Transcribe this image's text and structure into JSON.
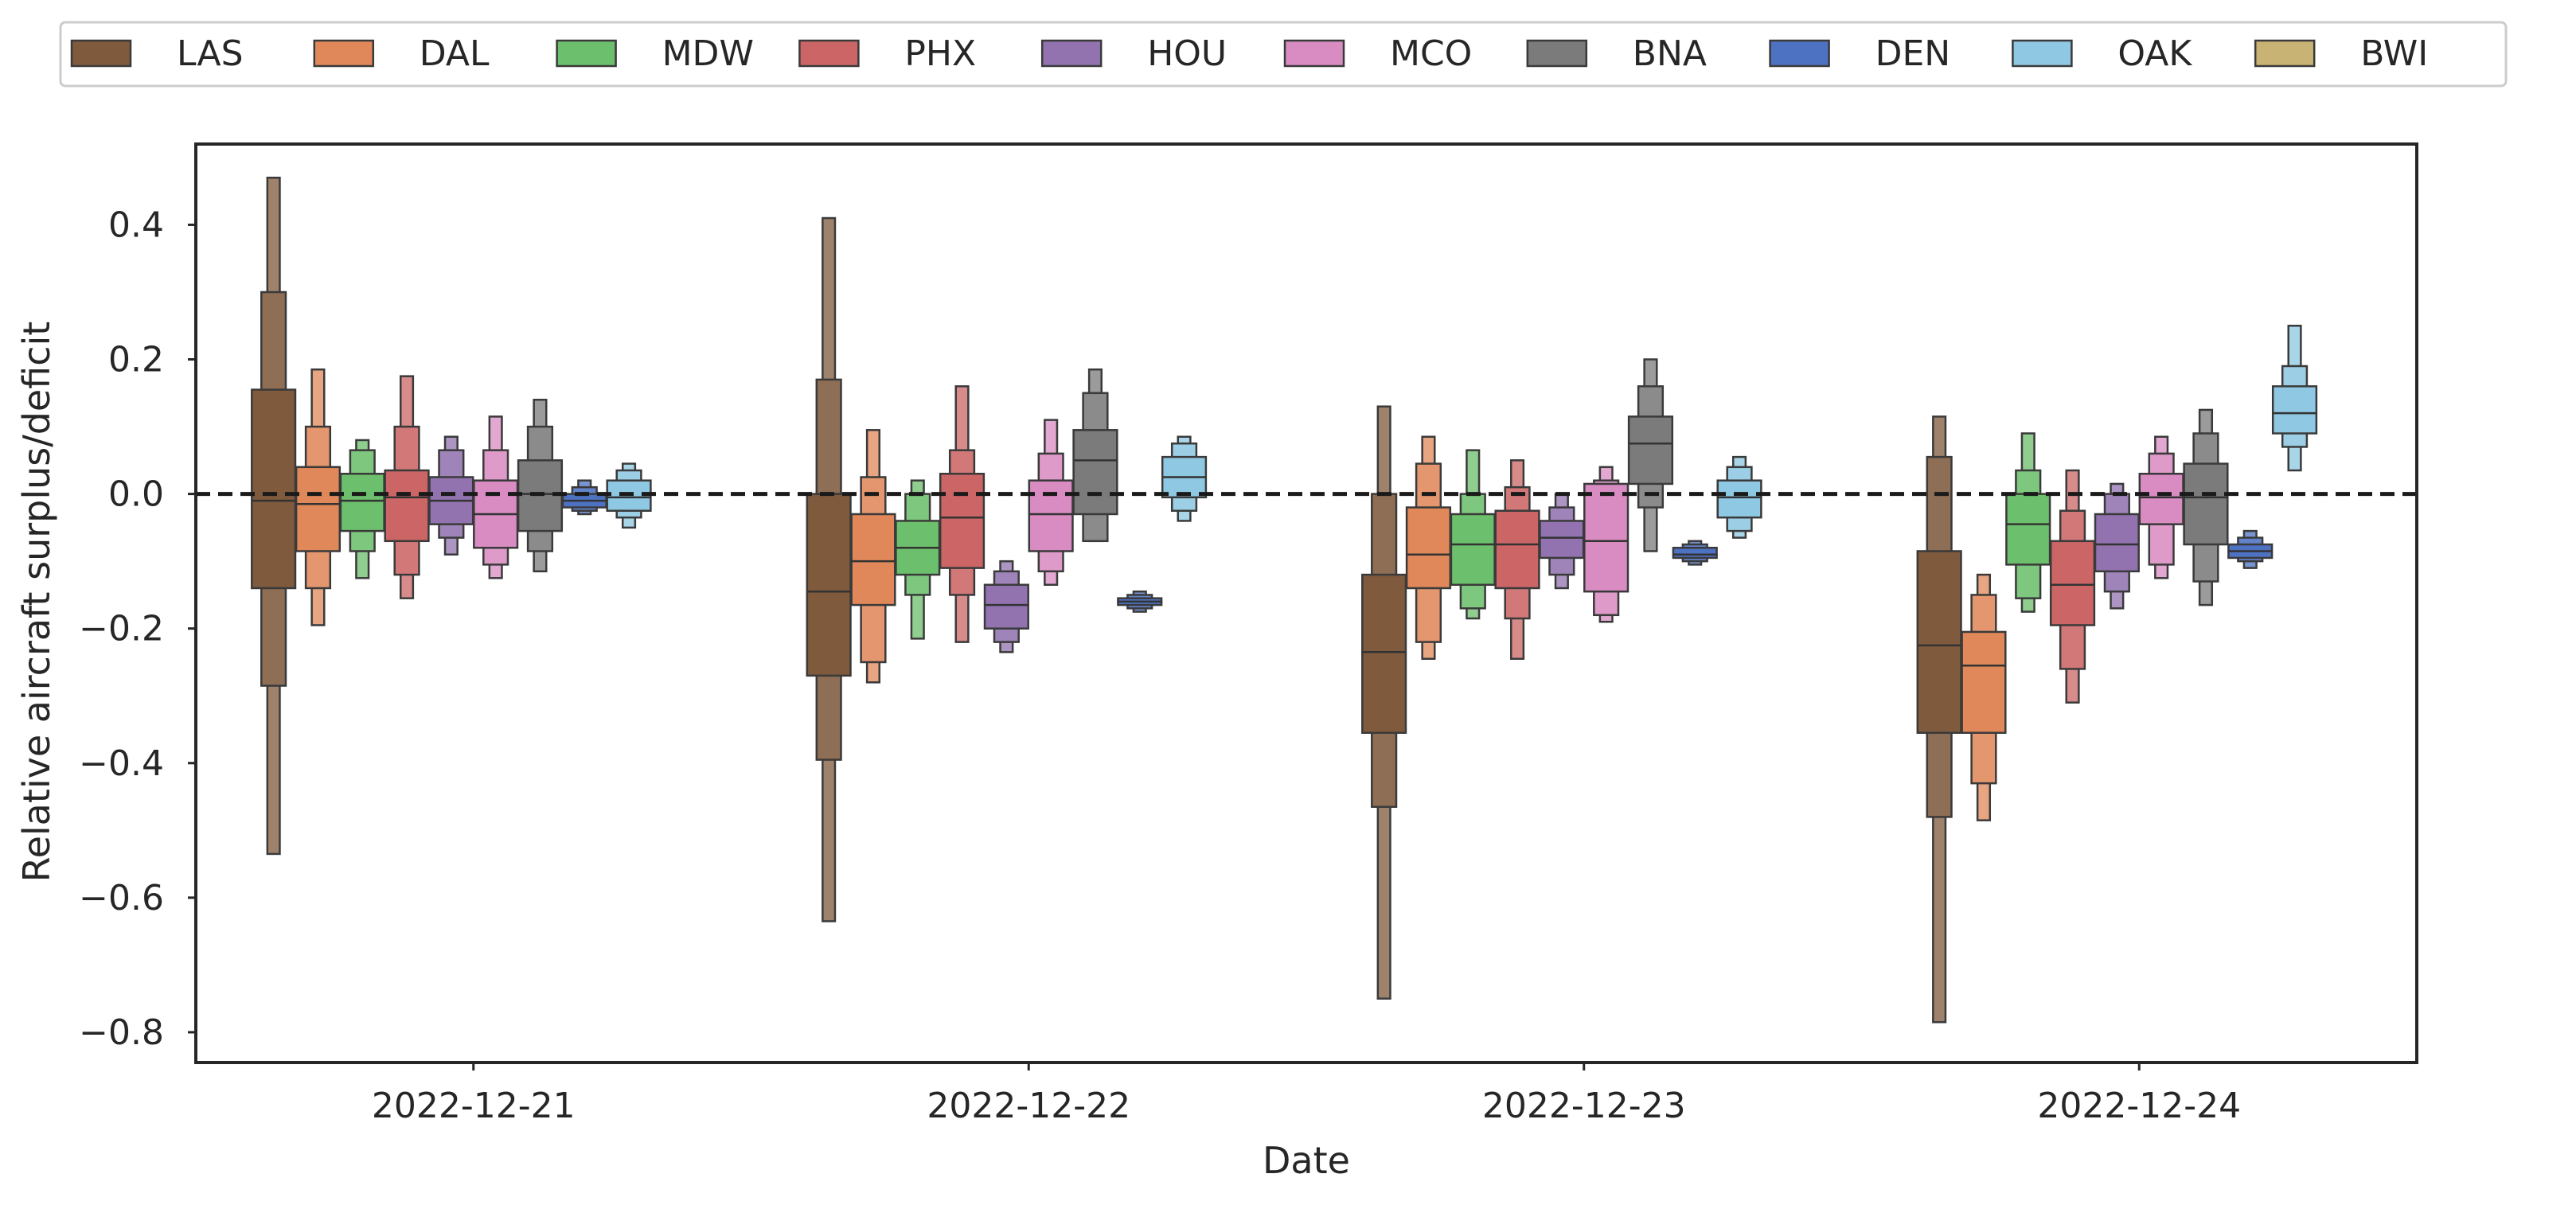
{
  "chart_data": {
    "type": "boxen",
    "xlabel": "Date",
    "ylabel": "Relative aircraft surplus/deficit",
    "ylim": [
      -0.845,
      0.52
    ],
    "yticks": [
      0.4,
      0.2,
      0.0,
      -0.2,
      -0.4,
      -0.6,
      -0.8
    ],
    "ytick_labels": [
      "0.4",
      "0.2",
      "0.0",
      "−0.2",
      "−0.4",
      "−0.6",
      "−0.8"
    ],
    "categories": [
      "2022-12-21",
      "2022-12-22",
      "2022-12-23",
      "2022-12-24"
    ],
    "reference_line": 0.0,
    "legend_position": "top, outside plot, single row",
    "grid": false,
    "series": [
      {
        "name": "LAS",
        "color": "#7f5a3d",
        "data": [
          {
            "median": -0.01,
            "levels": [
              [
                -0.14,
                0.155
              ],
              [
                -0.285,
                0.3
              ],
              [
                -0.535,
                0.47
              ]
            ]
          },
          {
            "median": -0.145,
            "levels": [
              [
                -0.27,
                0.0
              ],
              [
                -0.395,
                0.17
              ],
              [
                -0.635,
                0.41
              ]
            ]
          },
          {
            "median": -0.235,
            "levels": [
              [
                -0.355,
                -0.12
              ],
              [
                -0.465,
                0.0
              ],
              [
                -0.75,
                0.13
              ]
            ]
          },
          {
            "median": -0.225,
            "levels": [
              [
                -0.355,
                -0.085
              ],
              [
                -0.48,
                0.055
              ],
              [
                -0.785,
                0.115
              ]
            ]
          }
        ]
      },
      {
        "name": "DAL",
        "color": "#e0885a",
        "data": [
          {
            "median": -0.015,
            "levels": [
              [
                -0.085,
                0.04
              ],
              [
                -0.14,
                0.1
              ],
              [
                -0.195,
                0.185
              ]
            ]
          },
          {
            "median": -0.1,
            "levels": [
              [
                -0.165,
                -0.03
              ],
              [
                -0.25,
                0.025
              ],
              [
                -0.28,
                0.095
              ]
            ]
          },
          {
            "median": -0.09,
            "levels": [
              [
                -0.14,
                -0.02
              ],
              [
                -0.22,
                0.045
              ],
              [
                -0.245,
                0.085
              ]
            ]
          },
          {
            "median": -0.255,
            "levels": [
              [
                -0.355,
                -0.205
              ],
              [
                -0.43,
                -0.15
              ],
              [
                -0.485,
                -0.12
              ]
            ]
          }
        ]
      },
      {
        "name": "MDW",
        "color": "#6cbf6c",
        "data": [
          {
            "median": -0.01,
            "levels": [
              [
                -0.055,
                0.03
              ],
              [
                -0.085,
                0.065
              ],
              [
                -0.125,
                0.08
              ]
            ]
          },
          {
            "median": -0.08,
            "levels": [
              [
                -0.12,
                -0.04
              ],
              [
                -0.15,
                0.0
              ],
              [
                -0.215,
                0.02
              ]
            ]
          },
          {
            "median": -0.075,
            "levels": [
              [
                -0.135,
                -0.03
              ],
              [
                -0.17,
                0.0
              ],
              [
                -0.185,
                0.065
              ]
            ]
          },
          {
            "median": -0.045,
            "levels": [
              [
                -0.105,
                0.0
              ],
              [
                -0.155,
                0.035
              ],
              [
                -0.175,
                0.09
              ]
            ]
          }
        ]
      },
      {
        "name": "PHX",
        "color": "#cc6666",
        "data": [
          {
            "median": -0.005,
            "levels": [
              [
                -0.07,
                0.035
              ],
              [
                -0.12,
                0.1
              ],
              [
                -0.155,
                0.175
              ]
            ]
          },
          {
            "median": -0.035,
            "levels": [
              [
                -0.11,
                0.03
              ],
              [
                -0.15,
                0.065
              ],
              [
                -0.22,
                0.16
              ]
            ]
          },
          {
            "median": -0.075,
            "levels": [
              [
                -0.14,
                -0.025
              ],
              [
                -0.185,
                0.01
              ],
              [
                -0.245,
                0.05
              ]
            ]
          },
          {
            "median": -0.135,
            "levels": [
              [
                -0.195,
                -0.07
              ],
              [
                -0.26,
                -0.025
              ],
              [
                -0.31,
                0.035
              ]
            ]
          }
        ]
      },
      {
        "name": "HOU",
        "color": "#9273b0",
        "data": [
          {
            "median": -0.01,
            "levels": [
              [
                -0.045,
                0.025
              ],
              [
                -0.065,
                0.065
              ],
              [
                -0.09,
                0.085
              ]
            ]
          },
          {
            "median": -0.165,
            "levels": [
              [
                -0.2,
                -0.135
              ],
              [
                -0.22,
                -0.115
              ],
              [
                -0.235,
                -0.1
              ]
            ]
          },
          {
            "median": -0.065,
            "levels": [
              [
                -0.095,
                -0.04
              ],
              [
                -0.12,
                -0.02
              ],
              [
                -0.14,
                0.0
              ]
            ]
          },
          {
            "median": -0.075,
            "levels": [
              [
                -0.115,
                -0.03
              ],
              [
                -0.145,
                0.0
              ],
              [
                -0.17,
                0.015
              ]
            ]
          }
        ]
      },
      {
        "name": "MCO",
        "color": "#d98cc2",
        "data": [
          {
            "median": -0.03,
            "levels": [
              [
                -0.08,
                0.02
              ],
              [
                -0.105,
                0.065
              ],
              [
                -0.125,
                0.115
              ]
            ]
          },
          {
            "median": -0.03,
            "levels": [
              [
                -0.085,
                0.02
              ],
              [
                -0.115,
                0.06
              ],
              [
                -0.135,
                0.11
              ]
            ]
          },
          {
            "median": -0.07,
            "levels": [
              [
                -0.145,
                0.015
              ],
              [
                -0.18,
                0.02
              ],
              [
                -0.19,
                0.04
              ]
            ]
          },
          {
            "median": -0.005,
            "levels": [
              [
                -0.045,
                0.03
              ],
              [
                -0.105,
                0.06
              ],
              [
                -0.125,
                0.085
              ]
            ]
          }
        ]
      },
      {
        "name": "BNA",
        "color": "#7b7b7b",
        "data": [
          {
            "median": 0.0,
            "levels": [
              [
                -0.055,
                0.05
              ],
              [
                -0.085,
                0.1
              ],
              [
                -0.115,
                0.14
              ]
            ]
          },
          {
            "median": 0.05,
            "levels": [
              [
                -0.03,
                0.095
              ],
              [
                -0.07,
                0.15
              ],
              [
                -0.07,
                0.185
              ]
            ]
          },
          {
            "median": 0.075,
            "levels": [
              [
                0.015,
                0.115
              ],
              [
                -0.02,
                0.16
              ],
              [
                -0.085,
                0.2
              ]
            ]
          },
          {
            "median": -0.005,
            "levels": [
              [
                -0.075,
                0.045
              ],
              [
                -0.13,
                0.09
              ],
              [
                -0.165,
                0.125
              ]
            ]
          }
        ]
      },
      {
        "name": "DEN",
        "color": "#4e72c2",
        "data": [
          {
            "median": -0.01,
            "levels": [
              [
                -0.02,
                0.0
              ],
              [
                -0.025,
                0.01
              ],
              [
                -0.03,
                0.02
              ]
            ]
          },
          {
            "median": -0.16,
            "levels": [
              [
                -0.165,
                -0.155
              ],
              [
                -0.17,
                -0.15
              ],
              [
                -0.175,
                -0.145
              ]
            ]
          },
          {
            "median": -0.09,
            "levels": [
              [
                -0.095,
                -0.08
              ],
              [
                -0.1,
                -0.075
              ],
              [
                -0.105,
                -0.07
              ]
            ]
          },
          {
            "median": -0.085,
            "levels": [
              [
                -0.095,
                -0.075
              ],
              [
                -0.1,
                -0.065
              ],
              [
                -0.11,
                -0.055
              ]
            ]
          }
        ]
      },
      {
        "name": "OAK",
        "color": "#8ec8e2",
        "data": [
          {
            "median": -0.005,
            "levels": [
              [
                -0.025,
                0.02
              ],
              [
                -0.035,
                0.035
              ],
              [
                -0.05,
                0.045
              ]
            ]
          },
          {
            "median": 0.025,
            "levels": [
              [
                -0.005,
                0.055
              ],
              [
                -0.025,
                0.075
              ],
              [
                -0.04,
                0.085
              ]
            ]
          },
          {
            "median": -0.005,
            "levels": [
              [
                -0.035,
                0.02
              ],
              [
                -0.055,
                0.04
              ],
              [
                -0.065,
                0.055
              ]
            ]
          },
          {
            "median": 0.12,
            "levels": [
              [
                0.09,
                0.16
              ],
              [
                0.07,
                0.19
              ],
              [
                0.035,
                0.25
              ]
            ]
          }
        ]
      },
      {
        "name": "BWI",
        "color": "#c9b374",
        "data": [
          null,
          null,
          null,
          null
        ]
      }
    ]
  }
}
